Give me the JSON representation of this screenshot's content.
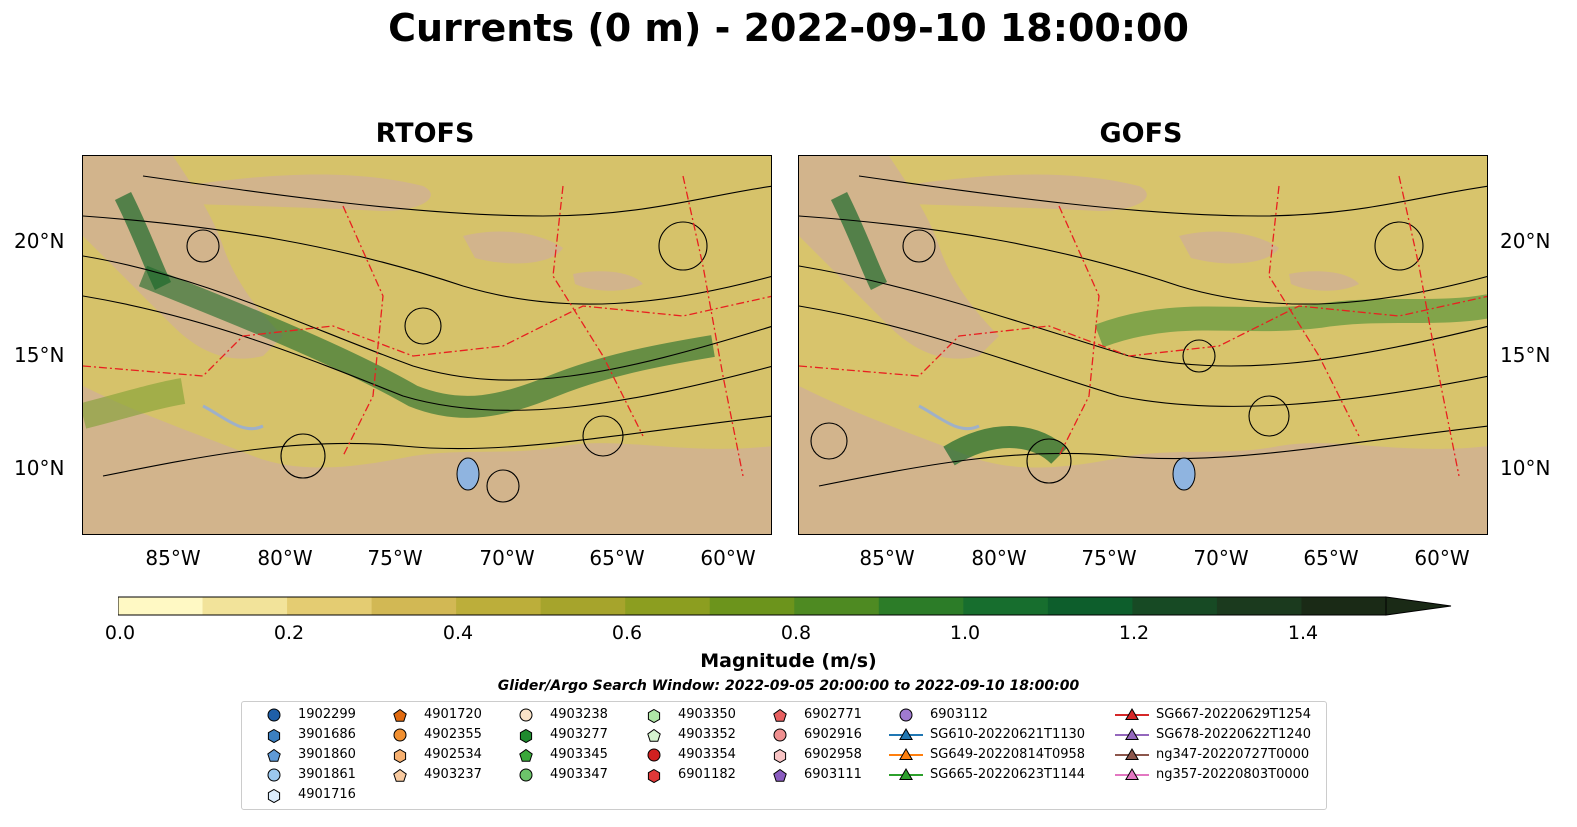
{
  "title": "Currents (0 m) - 2022-09-10 18:00:00",
  "panels": [
    {
      "title": "RTOFS"
    },
    {
      "title": "GOFS"
    }
  ],
  "latitude_labels": [
    "20°N",
    "15°N",
    "10°N"
  ],
  "longitude_labels": [
    "85°W",
    "80°W",
    "75°W",
    "70°W",
    "65°W",
    "60°W"
  ],
  "colorbar": {
    "label": "Magnitude (m/s)",
    "ticks": [
      "0.0",
      "0.2",
      "0.4",
      "0.6",
      "0.8",
      "1.0",
      "1.2",
      "1.4"
    ],
    "range": [
      0,
      1.5
    ],
    "colors": [
      "#fff9c4",
      "#f2e39a",
      "#e4cc72",
      "#d2b854",
      "#bcae3a",
      "#a6a42c",
      "#8c9e20",
      "#6c941c",
      "#4e8a22",
      "#2c7c28",
      "#176e2e",
      "#0d5e2c",
      "#174a24",
      "#1b3a1e",
      "#1a2a16"
    ]
  },
  "search_window": "Glider/Argo Search Window: 2022-09-05 20:00:00 to 2022-09-10 18:00:00",
  "legend": {
    "columns": [
      [
        {
          "label": "1902299",
          "marker": "circle",
          "color": "#1f5fa8"
        },
        {
          "label": "3901686",
          "marker": "hexagon",
          "color": "#3b7fc0"
        },
        {
          "label": "3901860",
          "marker": "pentagon",
          "color": "#5f9ad8"
        },
        {
          "label": "3901861",
          "marker": "circle",
          "color": "#9cc8ee"
        },
        {
          "label": "4901716",
          "marker": "hexagon",
          "color": "#dcecfb"
        }
      ],
      [
        {
          "label": "4901720",
          "marker": "pentagon",
          "color": "#e06a10"
        },
        {
          "label": "4902355",
          "marker": "circle",
          "color": "#f29030"
        },
        {
          "label": "4902534",
          "marker": "hexagon",
          "color": "#f6b070"
        },
        {
          "label": "4903237",
          "marker": "pentagon",
          "color": "#f8caa0"
        }
      ],
      [
        {
          "label": "4903238",
          "marker": "circle",
          "color": "#fbe3c8"
        },
        {
          "label": "4903277",
          "marker": "hexagon",
          "color": "#1f8a2e"
        },
        {
          "label": "4903345",
          "marker": "pentagon",
          "color": "#3aa83a"
        },
        {
          "label": "4903347",
          "marker": "circle",
          "color": "#6cc46a"
        }
      ],
      [
        {
          "label": "4903350",
          "marker": "hexagon",
          "color": "#aee6a6"
        },
        {
          "label": "4903352",
          "marker": "pentagon",
          "color": "#d6f4d0"
        },
        {
          "label": "4903354",
          "marker": "circle",
          "color": "#d02020"
        },
        {
          "label": "6901182",
          "marker": "hexagon",
          "color": "#e03838"
        }
      ],
      [
        {
          "label": "6902771",
          "marker": "pentagon",
          "color": "#e86060"
        },
        {
          "label": "6902916",
          "marker": "circle",
          "color": "#f09090"
        },
        {
          "label": "6902958",
          "marker": "hexagon",
          "color": "#f8c4c4"
        },
        {
          "label": "6903111",
          "marker": "pentagon",
          "color": "#8a5cc0"
        }
      ],
      [
        {
          "label": "6903112",
          "marker": "circle",
          "color": "#a07ad0"
        },
        {
          "label": "SG610-20220621T1130",
          "marker": "triangle",
          "color": "#1f77b4"
        },
        {
          "label": "SG649-20220814T0958",
          "marker": "triangle",
          "color": "#ff7f0e"
        },
        {
          "label": "SG665-20220623T1144",
          "marker": "triangle",
          "color": "#2ca02c"
        }
      ],
      [
        {
          "label": "SG667-20220629T1254",
          "marker": "triangle",
          "color": "#d62728"
        },
        {
          "label": "SG678-20220622T1240",
          "marker": "triangle",
          "color": "#9467bd"
        },
        {
          "label": "ng347-20220727T0000",
          "marker": "triangle",
          "color": "#8c564b"
        },
        {
          "label": "ng357-20220803T0000",
          "marker": "triangle",
          "color": "#e377c2"
        }
      ]
    ]
  }
}
